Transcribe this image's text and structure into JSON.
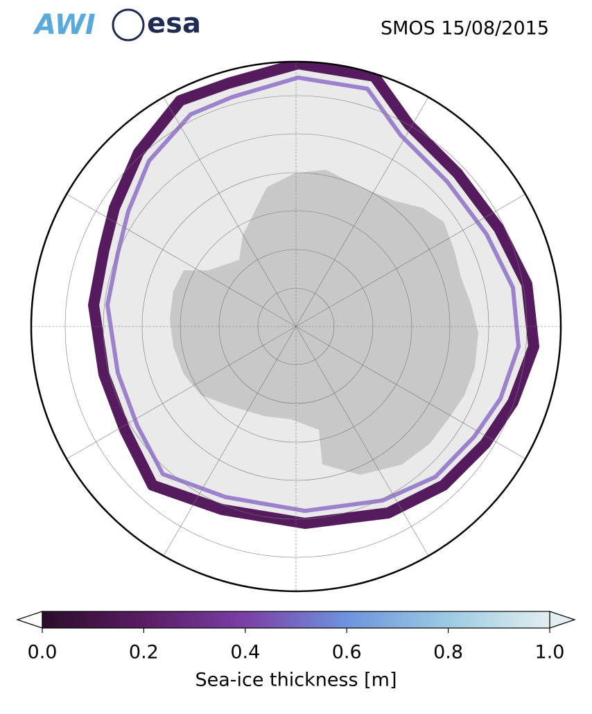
{
  "header": {
    "logos": [
      "AWI",
      "esa"
    ],
    "title": "SMOS 15/08/2015"
  },
  "colorbar": {
    "label": "Sea-ice thickness [m]",
    "range": [
      0,
      1
    ],
    "ticks": [
      {
        "value": 0,
        "label": "0.0"
      },
      {
        "value": 0.2,
        "label": "0.2"
      },
      {
        "value": 0.4,
        "label": "0.4"
      },
      {
        "value": 0.6,
        "label": "0.6"
      },
      {
        "value": 0.8,
        "label": "0.8"
      },
      {
        "value": 1,
        "label": "1.0"
      }
    ]
  }
}
